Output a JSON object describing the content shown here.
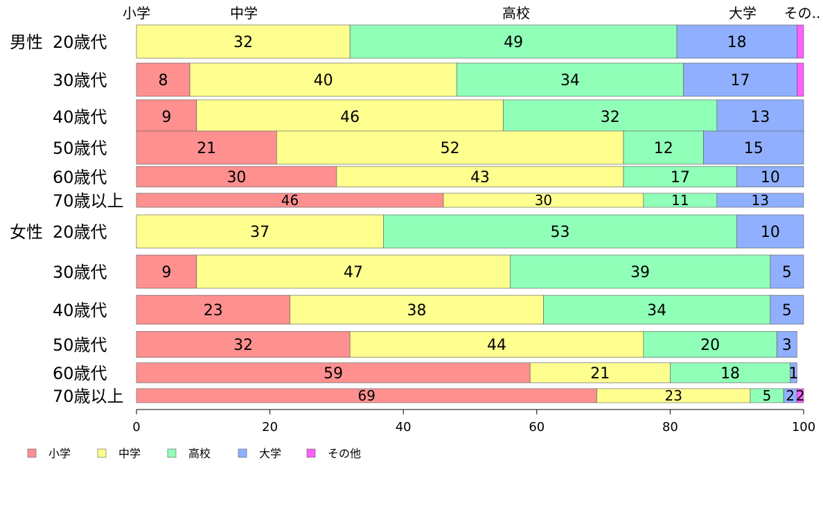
{
  "chart_data": {
    "type": "bar",
    "orientation": "horizontal",
    "stacked": true,
    "xlim": [
      0,
      100
    ],
    "x_ticks": [
      "0",
      "20",
      "40",
      "60",
      "80",
      "100"
    ],
    "top_labels": [
      "小学",
      "中学",
      "高校",
      "大学",
      "その.."
    ],
    "categories": [
      {
        "group": "男性",
        "label": "20歳代"
      },
      {
        "group": "",
        "label": "30歳代"
      },
      {
        "group": "",
        "label": "40歳代"
      },
      {
        "group": "",
        "label": "50歳代"
      },
      {
        "group": "",
        "label": "60歳代"
      },
      {
        "group": "",
        "label": "70歳以上"
      },
      {
        "group": "女性",
        "label": "20歳代"
      },
      {
        "group": "",
        "label": "30歳代"
      },
      {
        "group": "",
        "label": "40歳代"
      },
      {
        "group": "",
        "label": "50歳代"
      },
      {
        "group": "",
        "label": "60歳代"
      },
      {
        "group": "",
        "label": "70歳以上"
      }
    ],
    "bar_size_ratio": [
      1,
      1,
      1,
      1,
      0.62,
      0.42,
      1,
      1,
      0.87,
      0.78,
      0.6,
      0.42
    ],
    "series": [
      {
        "name": "小学",
        "color": "#ff9090",
        "values": [
          0,
          8,
          9,
          21,
          30,
          46,
          0,
          9,
          23,
          32,
          59,
          69
        ]
      },
      {
        "name": "中学",
        "color": "#ffff90",
        "values": [
          32,
          40,
          46,
          52,
          43,
          30,
          37,
          47,
          38,
          44,
          21,
          23
        ]
      },
      {
        "name": "高校",
        "color": "#90ffb8",
        "values": [
          49,
          34,
          32,
          12,
          17,
          11,
          53,
          39,
          34,
          20,
          18,
          5
        ]
      },
      {
        "name": "大学",
        "color": "#90b0ff",
        "values": [
          18,
          17,
          13,
          15,
          10,
          13,
          10,
          5,
          5,
          3,
          1,
          2
        ]
      },
      {
        "name": "その他",
        "color": "#ff60ff",
        "values": [
          1,
          1,
          0,
          0,
          0,
          0,
          0.5,
          0.5,
          0,
          0,
          0,
          2
        ]
      }
    ],
    "value_labels": [
      [
        "",
        "32",
        "49",
        "18",
        ""
      ],
      [
        "8",
        "40",
        "34",
        "17",
        ""
      ],
      [
        "9",
        "46",
        "32",
        "13",
        ""
      ],
      [
        "21",
        "52",
        "12",
        "15",
        ""
      ],
      [
        "30",
        "43",
        "17",
        "10",
        ""
      ],
      [
        "46",
        "30",
        "11",
        "13",
        ""
      ],
      [
        "",
        "37",
        "53",
        "10",
        ""
      ],
      [
        "9",
        "47",
        "39",
        "5",
        ""
      ],
      [
        "23",
        "38",
        "34",
        "5",
        ""
      ],
      [
        "32",
        "44",
        "20",
        "3",
        ""
      ],
      [
        "59",
        "21",
        "18",
        "1",
        ""
      ],
      [
        "69",
        "23",
        "5",
        "2",
        "2"
      ]
    ],
    "legend": {
      "placement": "bottom-left",
      "entries": [
        "小学",
        "中学",
        "高校",
        "大学",
        "その他"
      ]
    }
  }
}
